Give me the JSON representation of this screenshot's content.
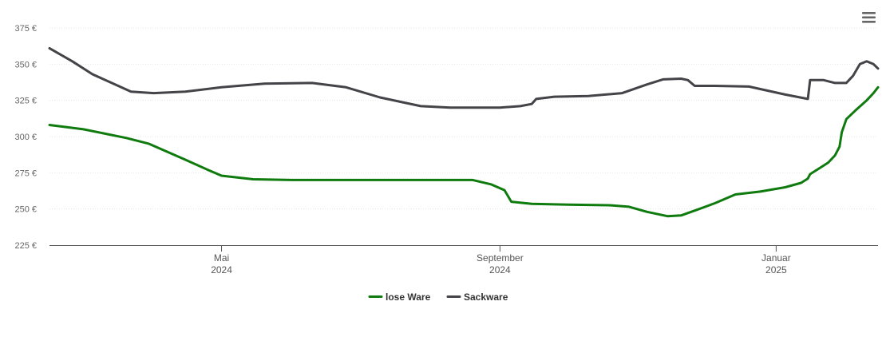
{
  "chart_data": {
    "type": "line",
    "title": "",
    "xlabel": "",
    "ylabel": "",
    "ylim": [
      225,
      375
    ],
    "yticks": [
      225,
      250,
      275,
      300,
      325,
      350,
      375
    ],
    "ytick_labels": [
      "225 €",
      "250 €",
      "275 €",
      "300 €",
      "325 €",
      "350 €",
      "375 €"
    ],
    "x_axis_type": "datetime",
    "xlim": [
      "2024-02-15",
      "2025-02-15"
    ],
    "xticks": [
      {
        "date": "2024-05-01",
        "line1": "Mai",
        "line2": "2024"
      },
      {
        "date": "2024-09-01",
        "line1": "September",
        "line2": "2024"
      },
      {
        "date": "2025-01-01",
        "line1": "Januar",
        "line2": "2025"
      }
    ],
    "grid": true,
    "legend_position": "bottom-center",
    "series": [
      {
        "name": "lose Ware",
        "color": "#0f7b0f",
        "points": [
          [
            "2024-02-15",
            308
          ],
          [
            "2024-03-01",
            305
          ],
          [
            "2024-03-20",
            299
          ],
          [
            "2024-03-30",
            295
          ],
          [
            "2024-04-15",
            284
          ],
          [
            "2024-04-25",
            277
          ],
          [
            "2024-05-01",
            273
          ],
          [
            "2024-05-15",
            270.5
          ],
          [
            "2024-06-01",
            270
          ],
          [
            "2024-07-01",
            270
          ],
          [
            "2024-08-01",
            270
          ],
          [
            "2024-08-20",
            270
          ],
          [
            "2024-08-28",
            267
          ],
          [
            "2024-09-03",
            263
          ],
          [
            "2024-09-06",
            255
          ],
          [
            "2024-09-15",
            253.5
          ],
          [
            "2024-10-01",
            253
          ],
          [
            "2024-10-20",
            252.5
          ],
          [
            "2024-10-28",
            251.5
          ],
          [
            "2024-11-05",
            248
          ],
          [
            "2024-11-14",
            245
          ],
          [
            "2024-11-20",
            245.5
          ],
          [
            "2024-11-28",
            250
          ],
          [
            "2024-12-05",
            254
          ],
          [
            "2024-12-14",
            260
          ],
          [
            "2024-12-25",
            262
          ],
          [
            "2025-01-05",
            265
          ],
          [
            "2025-01-12",
            268
          ],
          [
            "2025-01-15",
            271
          ],
          [
            "2025-01-16",
            274
          ],
          [
            "2025-01-20",
            278
          ],
          [
            "2025-01-24",
            282
          ],
          [
            "2025-01-27",
            287
          ],
          [
            "2025-01-29",
            293
          ],
          [
            "2025-01-30",
            303
          ],
          [
            "2025-02-01",
            312
          ],
          [
            "2025-02-05",
            318
          ],
          [
            "2025-02-10",
            325
          ],
          [
            "2025-02-13",
            330
          ],
          [
            "2025-02-15",
            334
          ]
        ]
      },
      {
        "name": "Sackware",
        "color": "#434348",
        "points": [
          [
            "2024-02-15",
            361
          ],
          [
            "2024-02-25",
            352
          ],
          [
            "2024-03-05",
            343
          ],
          [
            "2024-03-15",
            336
          ],
          [
            "2024-03-22",
            331
          ],
          [
            "2024-04-01",
            330
          ],
          [
            "2024-04-15",
            331
          ],
          [
            "2024-05-01",
            334
          ],
          [
            "2024-05-20",
            336.5
          ],
          [
            "2024-06-10",
            337
          ],
          [
            "2024-06-25",
            334
          ],
          [
            "2024-07-10",
            327
          ],
          [
            "2024-07-28",
            321
          ],
          [
            "2024-08-10",
            320
          ],
          [
            "2024-09-01",
            320
          ],
          [
            "2024-09-10",
            321
          ],
          [
            "2024-09-15",
            322.5
          ],
          [
            "2024-09-17",
            326
          ],
          [
            "2024-09-25",
            327.5
          ],
          [
            "2024-10-10",
            328
          ],
          [
            "2024-10-25",
            330
          ],
          [
            "2024-11-05",
            336
          ],
          [
            "2024-11-12",
            339.5
          ],
          [
            "2024-11-20",
            340
          ],
          [
            "2024-11-23",
            339
          ],
          [
            "2024-11-26",
            335
          ],
          [
            "2024-12-05",
            335
          ],
          [
            "2024-12-20",
            334.5
          ],
          [
            "2025-01-05",
            329
          ],
          [
            "2025-01-15",
            326
          ],
          [
            "2025-01-16",
            339
          ],
          [
            "2025-01-22",
            339
          ],
          [
            "2025-01-27",
            337
          ],
          [
            "2025-02-01",
            337
          ],
          [
            "2025-02-04",
            342
          ],
          [
            "2025-02-07",
            350
          ],
          [
            "2025-02-10",
            352
          ],
          [
            "2025-02-13",
            350
          ],
          [
            "2025-02-15",
            347
          ]
        ]
      }
    ]
  },
  "menu": {
    "icon": "hamburger-menu-icon"
  }
}
